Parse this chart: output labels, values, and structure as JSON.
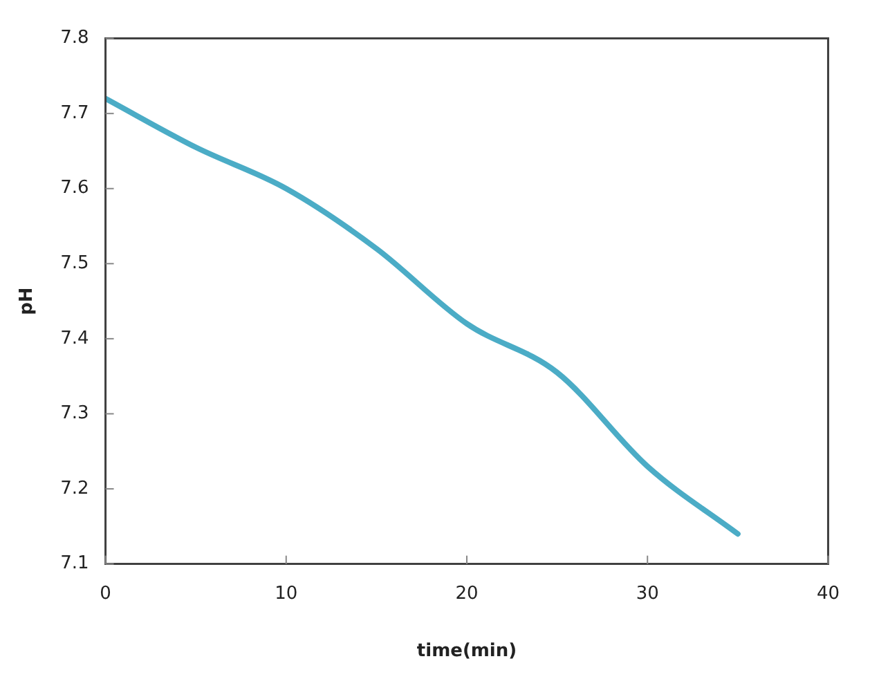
{
  "chart_data": {
    "type": "line",
    "xlabel": "time(min)",
    "ylabel": "pH",
    "x": [
      0,
      5,
      10,
      15,
      20,
      25,
      30,
      35
    ],
    "series": [
      {
        "color": "#4bacc6",
        "values": [
          7.72,
          7.655,
          7.6,
          7.52,
          7.42,
          7.355,
          7.23,
          7.14
        ]
      }
    ],
    "xlim": [
      0,
      40
    ],
    "xticks": [
      0,
      10,
      20,
      30,
      40
    ],
    "ylim": [
      7.1,
      7.8
    ],
    "yticks": [
      7.1,
      7.2,
      7.3,
      7.4,
      7.5,
      7.6,
      7.7,
      7.8
    ],
    "grid": false,
    "legend": false,
    "marker": "none",
    "line_style": "solid"
  }
}
